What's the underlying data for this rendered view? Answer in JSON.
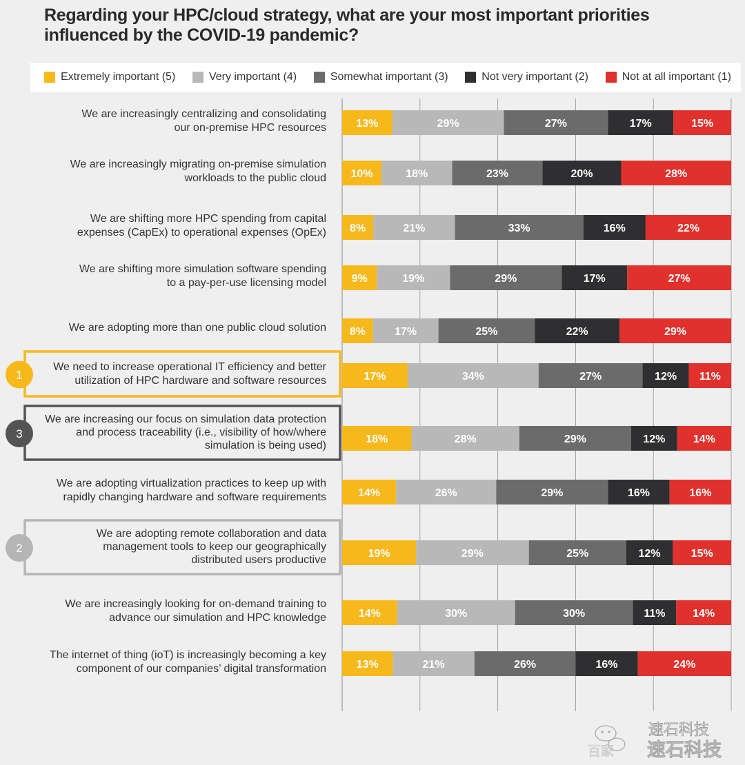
{
  "chart_data": {
    "type": "bar",
    "orientation": "horizontal-stacked-100",
    "title": "Regarding your HPC/cloud strategy, what are your most important priorities influenced by the COVID-19 pandemic?",
    "xlim": [
      0,
      100
    ],
    "grid": true,
    "legend_position": "top",
    "series": [
      {
        "name": "Extremely important (5)",
        "color": "#f7b81c",
        "label_color": "#ffffff"
      },
      {
        "name": "Very important (4)",
        "color": "#b8b8b8",
        "label_color": "#ffffff"
      },
      {
        "name": "Somewhat important (3)",
        "color": "#6b6b6b",
        "label_color": "#ffffff"
      },
      {
        "name": "Not very important (2)",
        "color": "#2f2e30",
        "label_color": "#ffffff"
      },
      {
        "name": "Not at all important (1)",
        "color": "#e1312c",
        "label_color": "#ffffff"
      }
    ],
    "rows": [
      {
        "label": [
          "We are increasingly centralizing and consolidating",
          "our on-premise HPC resources"
        ],
        "values": [
          13,
          29,
          27,
          17,
          15
        ]
      },
      {
        "label": [
          "We are increasingly migrating on-premise simulation",
          "workloads to the public cloud"
        ],
        "values": [
          10,
          18,
          23,
          20,
          28
        ]
      },
      {
        "label": [
          "We are shifting more HPC spending from capital",
          "expenses (CapEx) to operational expenses (OpEx)"
        ],
        "values": [
          8,
          21,
          33,
          16,
          22
        ]
      },
      {
        "label": [
          "We are shifting more simulation software spending",
          "to a pay-per-use licensing model"
        ],
        "values": [
          9,
          19,
          29,
          17,
          27
        ]
      },
      {
        "label": [
          "We are adopting more than one  public cloud solution"
        ],
        "values": [
          8,
          17,
          25,
          22,
          29
        ]
      },
      {
        "label": [
          "We need to increase operational IT efficiency and better",
          "utilization of HPC hardware and software resources"
        ],
        "values": [
          17,
          34,
          27,
          12,
          11
        ],
        "rank": "1",
        "rank_color": "#f7b81c"
      },
      {
        "label": [
          "We are increasing our focus on simulation data protection",
          "and process traceability (i.e., visibility of how/where",
          "simulation is being used)"
        ],
        "values": [
          18,
          28,
          29,
          12,
          14
        ],
        "rank": "3",
        "rank_color": "#545454"
      },
      {
        "label": [
          "We are adopting virtualization practices to keep up with",
          "rapidly changing hardware and software requirements"
        ],
        "values": [
          14,
          26,
          29,
          16,
          16
        ]
      },
      {
        "label": [
          "We are adopting remote collaboration and data",
          "management tools to keep our geographically",
          "distributed users productive"
        ],
        "values": [
          19,
          29,
          25,
          12,
          15
        ],
        "rank": "2",
        "rank_color": "#b5b5b5"
      },
      {
        "label": [
          "We are increasingly looking for on-demand training to",
          "advance our simulation and HPC knowledge"
        ],
        "values": [
          14,
          30,
          30,
          11,
          14
        ]
      },
      {
        "label": [
          "The internet of thing (ioT) is increasingly becoming a key",
          "component of our companies’ digital transformation"
        ],
        "values": [
          13,
          21,
          26,
          16,
          24
        ]
      }
    ]
  },
  "watermark": {
    "line1": "速石科技",
    "line2": "速石科技",
    "prefix": "百家",
    "icon": "wechat-icon"
  }
}
